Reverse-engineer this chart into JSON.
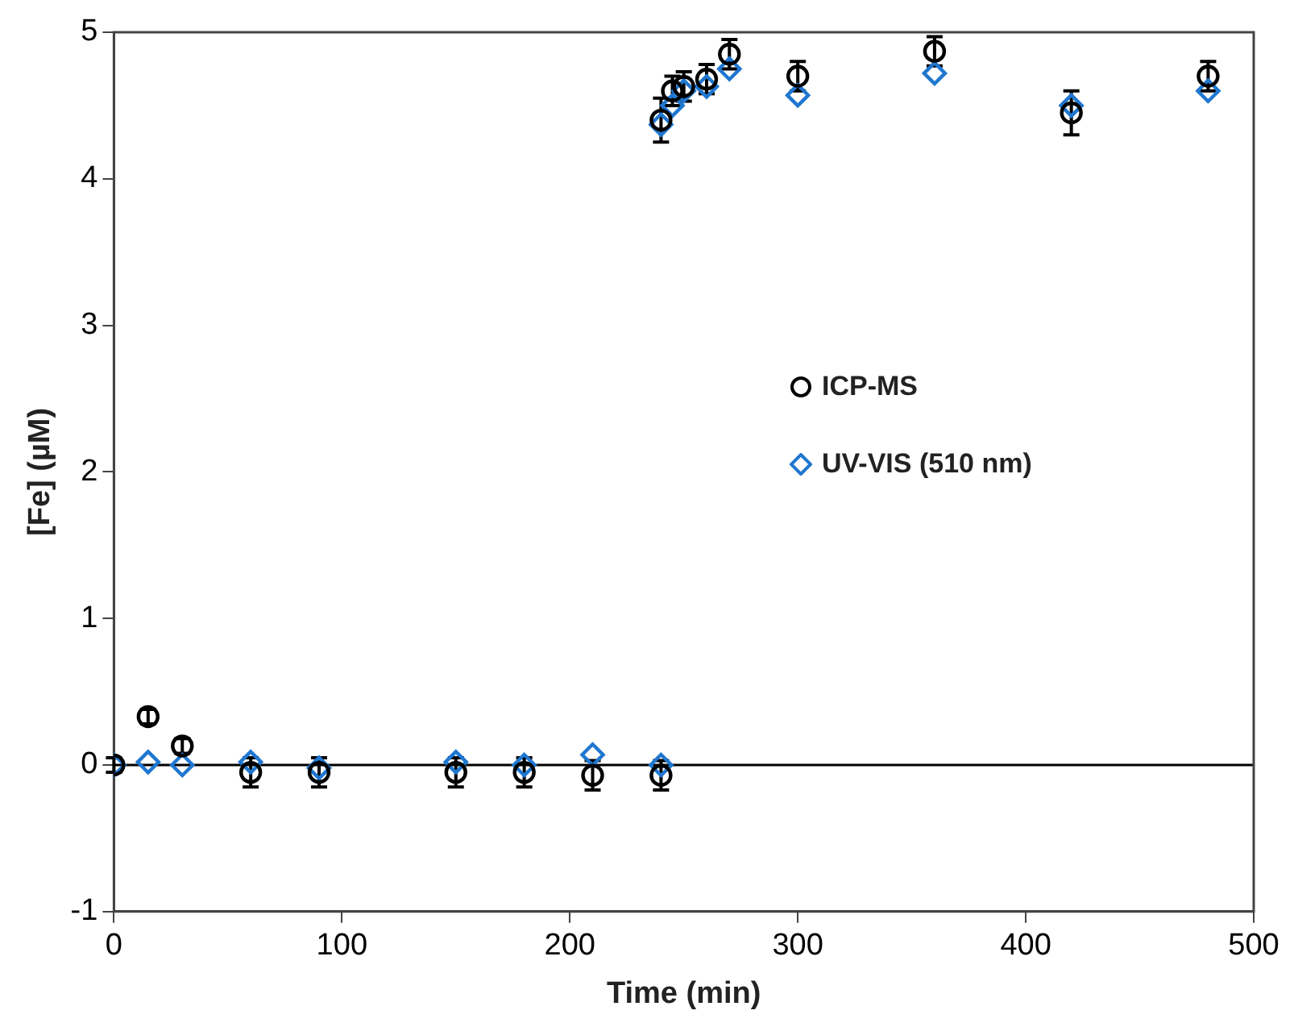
{
  "chart_data": {
    "type": "scatter",
    "xlabel": "Time (min)",
    "ylabel": "[Fe] (µM)",
    "xlim": [
      0,
      500
    ],
    "xticks": [
      0,
      100,
      200,
      300,
      400,
      500
    ],
    "ylim": [
      -1,
      5
    ],
    "yticks": [
      -1,
      0,
      1,
      2,
      3,
      4,
      5
    ],
    "grid": false,
    "legend": "right",
    "ref_lines": [
      {
        "axis": "y",
        "value": 0,
        "color": "#000000"
      }
    ],
    "series": [
      {
        "name": "ICP-MS",
        "color": "#000000",
        "marker": "circle",
        "x": [
          0,
          15,
          30,
          60,
          90,
          150,
          180,
          210,
          240,
          240,
          245,
          250,
          260,
          270,
          300,
          360,
          420,
          480
        ],
        "values": [
          0,
          0.33,
          0.13,
          -0.05,
          -0.05,
          -0.05,
          -0.05,
          -0.07,
          -0.07,
          4.4,
          4.6,
          4.63,
          4.68,
          4.85,
          4.7,
          4.87,
          4.45,
          4.7
        ],
        "errors": [
          0.05,
          0.05,
          0.05,
          0.1,
          0.1,
          0.1,
          0.1,
          0.1,
          0.1,
          0.15,
          0.1,
          0.1,
          0.1,
          0.1,
          0.1,
          0.1,
          0.15,
          0.1
        ]
      },
      {
        "name": "UV-VIS (510 nm)",
        "color": "#1f77d0",
        "marker": "diamond",
        "x": [
          0,
          15,
          30,
          60,
          90,
          150,
          180,
          210,
          240,
          240,
          245,
          250,
          260,
          270,
          300,
          360,
          420,
          480
        ],
        "values": [
          0,
          0.02,
          0,
          0.02,
          -0.02,
          0.02,
          0,
          0.07,
          0,
          4.37,
          4.5,
          4.6,
          4.63,
          4.75,
          4.57,
          4.72,
          4.5,
          4.6
        ]
      }
    ]
  }
}
